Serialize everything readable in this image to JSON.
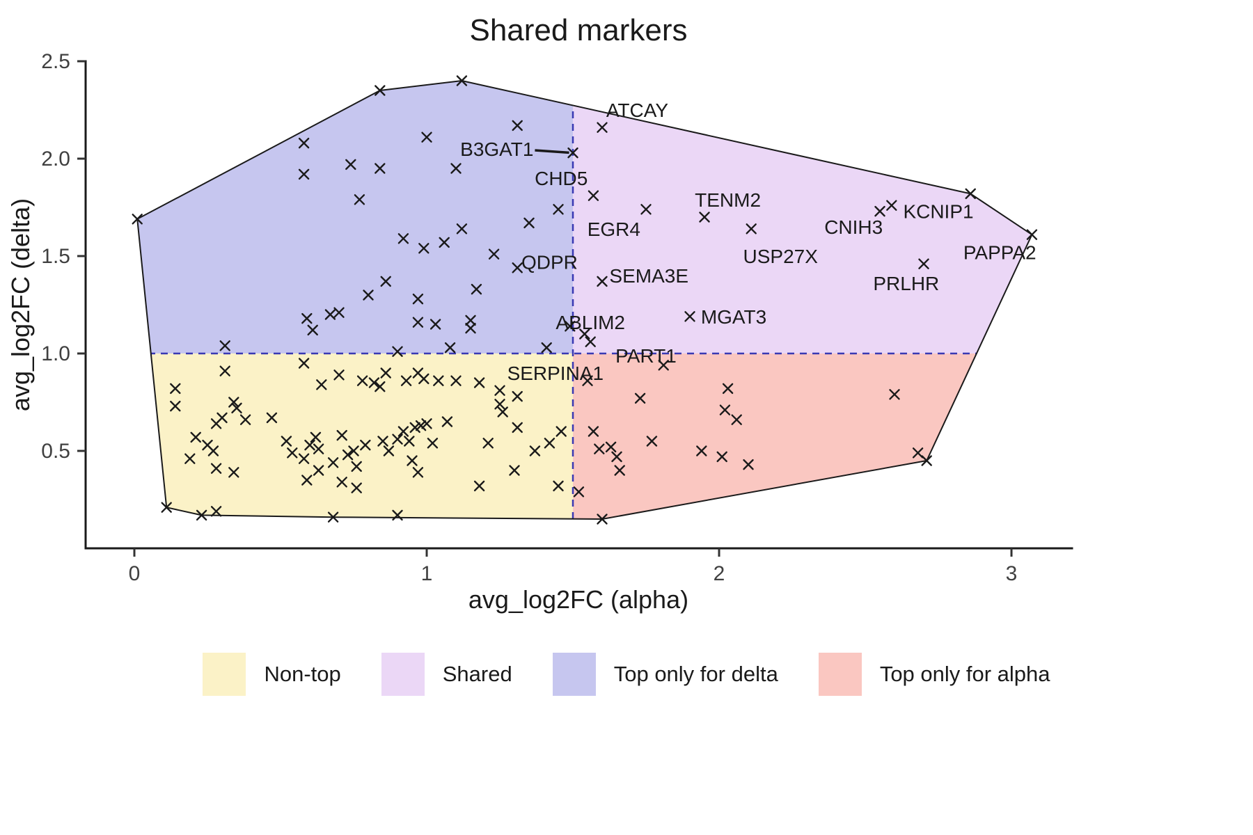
{
  "chart_data": {
    "type": "scatter",
    "title": "Shared markers",
    "xlabel": "avg_log2FC (alpha)",
    "ylabel": "avg_log2FC (delta)",
    "marker": "x-cross",
    "marker_color": "#1a1a1a",
    "xlim": [
      -0.1667,
      3.2071
    ],
    "ylim": [
      0,
      2.5
    ],
    "x_ticks": [
      {
        "v": 0,
        "label": "0"
      },
      {
        "v": 1,
        "label": "1"
      },
      {
        "v": 2,
        "label": "2"
      },
      {
        "v": 3,
        "label": "3"
      }
    ],
    "y_ticks": [
      {
        "v": 0.5,
        "label": "0.5"
      },
      {
        "v": 1.0,
        "label": "1.0"
      },
      {
        "v": 1.5,
        "label": "1.5"
      },
      {
        "v": 2.0,
        "label": "2.0"
      },
      {
        "v": 2.5,
        "label": "2.5"
      }
    ],
    "thresholds": {
      "x": 1.5,
      "y": 1.0
    },
    "threshold_line_color": "#3939B3",
    "hull_outline_color": "#1a1a1a",
    "hull": [
      [
        0.01,
        1.69
      ],
      [
        0.84,
        2.35
      ],
      [
        1.12,
        2.4
      ],
      [
        2.86,
        1.82
      ],
      [
        3.07,
        1.61
      ],
      [
        2.71,
        0.45
      ],
      [
        1.6,
        0.15
      ],
      [
        0.68,
        0.16
      ],
      [
        0.23,
        0.17
      ],
      [
        0.11,
        0.21
      ]
    ],
    "regions": [
      {
        "quadrant": "low-x-low-y",
        "label": "Non-top",
        "color": "#FBF2C7"
      },
      {
        "quadrant": "high-x-high-y",
        "label": "Shared",
        "color": "#EBD7F6"
      },
      {
        "quadrant": "low-x-high-y",
        "label": "Top only for delta",
        "color": "#C6C6EF"
      },
      {
        "quadrant": "high-x-low-y",
        "label": "Top only for alpha",
        "color": "#FAC7C1"
      }
    ],
    "points": [
      [
        0.01,
        1.69
      ],
      [
        0.84,
        2.35
      ],
      [
        1.12,
        2.4
      ],
      [
        0.58,
        2.08
      ],
      [
        1.0,
        2.11
      ],
      [
        1.31,
        2.17
      ],
      [
        0.58,
        1.92
      ],
      [
        0.74,
        1.97
      ],
      [
        0.84,
        1.95
      ],
      [
        1.1,
        1.95
      ],
      [
        0.77,
        1.79
      ],
      [
        1.35,
        1.67
      ],
      [
        1.45,
        1.74
      ],
      [
        0.92,
        1.59
      ],
      [
        0.99,
        1.54
      ],
      [
        1.06,
        1.57
      ],
      [
        1.12,
        1.64
      ],
      [
        1.23,
        1.51
      ],
      [
        0.8,
        1.3
      ],
      [
        0.86,
        1.37
      ],
      [
        0.97,
        1.28
      ],
      [
        1.17,
        1.33
      ],
      [
        0.59,
        1.18
      ],
      [
        0.67,
        1.2
      ],
      [
        0.7,
        1.21
      ],
      [
        0.61,
        1.12
      ],
      [
        0.97,
        1.16
      ],
      [
        1.03,
        1.15
      ],
      [
        1.15,
        1.17
      ],
      [
        1.15,
        1.13
      ],
      [
        0.31,
        1.04
      ],
      [
        1.08,
        1.03
      ],
      [
        1.41,
        1.03
      ],
      [
        0.9,
        1.01
      ],
      [
        2.86,
        1.82
      ],
      [
        1.54,
        1.1
      ],
      [
        1.56,
        1.06
      ],
      [
        1.73,
        0.77
      ],
      [
        1.77,
        0.55
      ],
      [
        2.03,
        0.82
      ],
      [
        2.02,
        0.71
      ],
      [
        2.06,
        0.66
      ],
      [
        1.94,
        0.5
      ],
      [
        2.01,
        0.47
      ],
      [
        2.1,
        0.43
      ],
      [
        1.57,
        0.6
      ],
      [
        1.59,
        0.51
      ],
      [
        1.63,
        0.52
      ],
      [
        1.65,
        0.47
      ],
      [
        1.66,
        0.4
      ],
      [
        1.52,
        0.29
      ],
      [
        1.6,
        0.15
      ],
      [
        2.6,
        0.79
      ],
      [
        2.71,
        0.45
      ],
      [
        2.68,
        0.49
      ],
      [
        0.14,
        0.82
      ],
      [
        0.31,
        0.91
      ],
      [
        0.58,
        0.95
      ],
      [
        0.7,
        0.89
      ],
      [
        0.64,
        0.84
      ],
      [
        0.78,
        0.86
      ],
      [
        0.82,
        0.85
      ],
      [
        0.84,
        0.83
      ],
      [
        0.86,
        0.9
      ],
      [
        0.93,
        0.86
      ],
      [
        0.97,
        0.9
      ],
      [
        0.99,
        0.87
      ],
      [
        1.04,
        0.86
      ],
      [
        1.1,
        0.86
      ],
      [
        1.18,
        0.85
      ],
      [
        1.25,
        0.81
      ],
      [
        1.31,
        0.78
      ],
      [
        1.26,
        0.7
      ],
      [
        1.31,
        0.62
      ],
      [
        0.14,
        0.73
      ],
      [
        0.21,
        0.57
      ],
      [
        0.25,
        0.53
      ],
      [
        0.19,
        0.46
      ],
      [
        0.28,
        0.64
      ],
      [
        0.3,
        0.67
      ],
      [
        0.34,
        0.75
      ],
      [
        0.35,
        0.72
      ],
      [
        0.38,
        0.66
      ],
      [
        0.28,
        0.41
      ],
      [
        0.34,
        0.39
      ],
      [
        0.27,
        0.5
      ],
      [
        0.11,
        0.21
      ],
      [
        0.23,
        0.17
      ],
      [
        0.28,
        0.19
      ],
      [
        0.47,
        0.67
      ],
      [
        0.52,
        0.55
      ],
      [
        0.54,
        0.49
      ],
      [
        0.58,
        0.46
      ],
      [
        0.6,
        0.53
      ],
      [
        0.62,
        0.57
      ],
      [
        0.63,
        0.51
      ],
      [
        0.59,
        0.35
      ],
      [
        0.63,
        0.4
      ],
      [
        0.68,
        0.44
      ],
      [
        0.71,
        0.58
      ],
      [
        0.73,
        0.48
      ],
      [
        0.75,
        0.5
      ],
      [
        0.76,
        0.42
      ],
      [
        0.79,
        0.53
      ],
      [
        0.71,
        0.34
      ],
      [
        0.76,
        0.31
      ],
      [
        0.68,
        0.16
      ],
      [
        0.9,
        0.17
      ],
      [
        0.85,
        0.55
      ],
      [
        0.87,
        0.5
      ],
      [
        0.9,
        0.56
      ],
      [
        0.92,
        0.6
      ],
      [
        0.94,
        0.55
      ],
      [
        0.96,
        0.62
      ],
      [
        0.98,
        0.63
      ],
      [
        1.0,
        0.64
      ],
      [
        0.95,
        0.45
      ],
      [
        0.97,
        0.39
      ],
      [
        1.02,
        0.54
      ],
      [
        1.07,
        0.65
      ],
      [
        1.18,
        0.32
      ],
      [
        1.21,
        0.54
      ],
      [
        1.25,
        0.74
      ],
      [
        1.3,
        0.4
      ],
      [
        1.42,
        0.54
      ],
      [
        1.45,
        0.32
      ],
      [
        1.46,
        0.6
      ],
      [
        1.37,
        0.5
      ]
    ],
    "labeled_points": [
      {
        "label": "ATCAY",
        "x": 1.6,
        "y": 2.16,
        "lx": 1.72,
        "ly": 2.25
      },
      {
        "label": "B3GAT1",
        "x": 1.5,
        "y": 2.03,
        "lx": 1.24,
        "ly": 2.05,
        "leader": [
          1.37,
          2.043,
          1.487,
          2.031
        ]
      },
      {
        "label": "CHD5",
        "x": 1.57,
        "y": 1.81,
        "lx": 1.46,
        "ly": 1.9
      },
      {
        "label": "EGR4",
        "x": 1.75,
        "y": 1.74,
        "lx": 1.64,
        "ly": 1.64
      },
      {
        "label": "TENM2",
        "x": 1.95,
        "y": 1.7,
        "lx": 2.03,
        "ly": 1.79
      },
      {
        "label": "USP27X",
        "x": 2.11,
        "y": 1.64,
        "lx": 2.21,
        "ly": 1.5
      },
      {
        "label": "CNIH3",
        "x": 2.55,
        "y": 1.73,
        "lx": 2.46,
        "ly": 1.65
      },
      {
        "label": "KCNIP1",
        "x": 2.59,
        "y": 1.76,
        "lx": 2.75,
        "ly": 1.73
      },
      {
        "label": "PAPPA2",
        "x": 3.07,
        "y": 1.61,
        "lx": 2.96,
        "ly": 1.52
      },
      {
        "label": "PRLHR",
        "x": 2.7,
        "y": 1.46,
        "lx": 2.64,
        "ly": 1.36
      },
      {
        "label": "QDPR",
        "x": 1.31,
        "y": 1.44,
        "lx": 1.42,
        "ly": 1.47
      },
      {
        "label": "SEMA3E",
        "x": 1.6,
        "y": 1.37,
        "lx": 1.76,
        "ly": 1.4
      },
      {
        "label": "MGAT3",
        "x": 1.9,
        "y": 1.19,
        "lx": 2.05,
        "ly": 1.19
      },
      {
        "label": "ABLIM2",
        "x": 1.49,
        "y": 1.14,
        "lx": 1.56,
        "ly": 1.16
      },
      {
        "label": "PART1",
        "x": 1.81,
        "y": 0.94,
        "lx": 1.75,
        "ly": 0.99
      },
      {
        "label": "SERPINA1",
        "x": 1.55,
        "y": 0.86,
        "lx": 1.44,
        "ly": 0.9
      }
    ]
  },
  "legend": {
    "items": [
      {
        "label": "Non-top",
        "color": "#FBF2C7"
      },
      {
        "label": "Shared",
        "color": "#EBD7F6"
      },
      {
        "label": "Top only for delta",
        "color": "#C6C6EF"
      },
      {
        "label": "Top only for alpha",
        "color": "#FAC7C1"
      }
    ]
  }
}
